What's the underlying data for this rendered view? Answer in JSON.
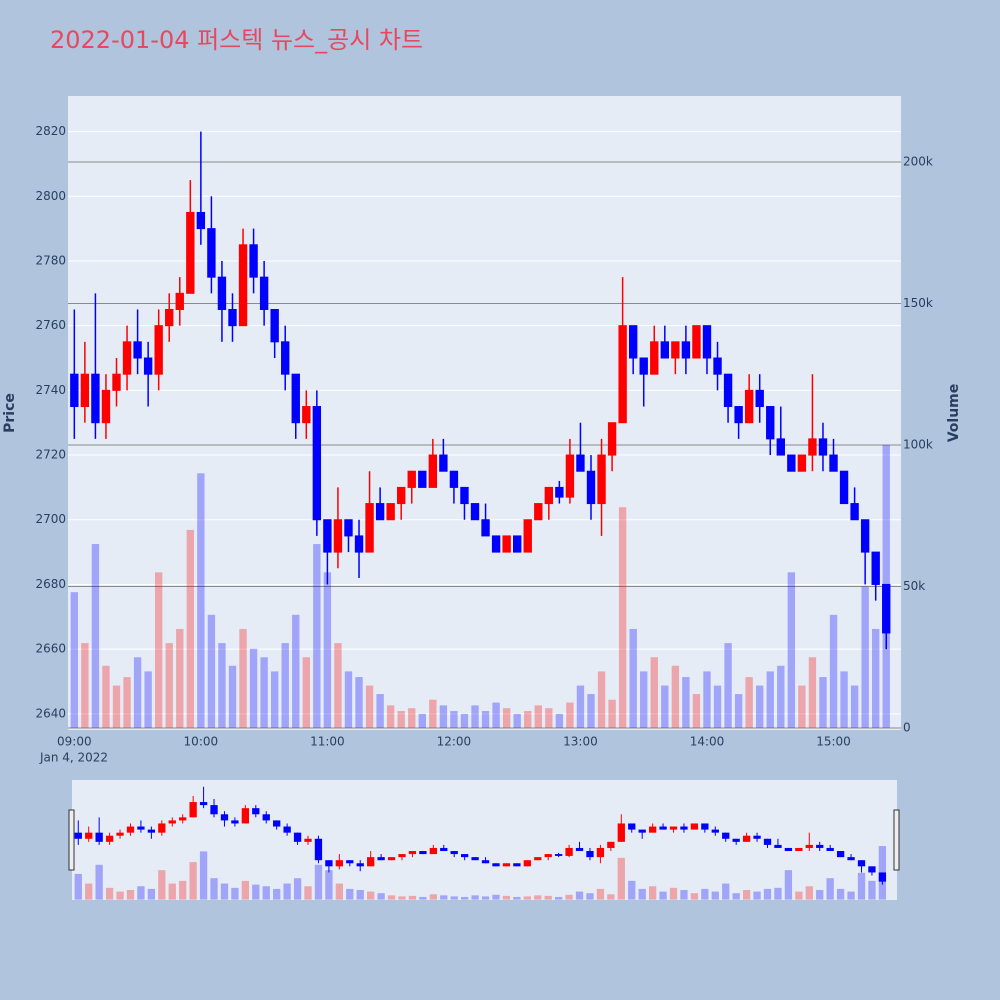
{
  "chart_data": {
    "type": "candlestick",
    "title": "2022-01-04 퍼스텍 뉴스_공시 차트",
    "y_label": "Price",
    "y2_label": "Volume",
    "date_label": "Jan 4, 2022",
    "increasing_color": "#ff0000",
    "decreasing_color": "#0000ff",
    "x": [
      "09:00",
      "09:05",
      "09:10",
      "09:15",
      "09:20",
      "09:25",
      "09:30",
      "09:35",
      "09:40",
      "09:45",
      "09:50",
      "09:55",
      "10:00",
      "10:05",
      "10:10",
      "10:15",
      "10:20",
      "10:25",
      "10:30",
      "10:35",
      "10:40",
      "10:45",
      "10:50",
      "10:55",
      "11:00",
      "11:05",
      "11:10",
      "11:15",
      "11:20",
      "11:25",
      "11:30",
      "11:35",
      "11:40",
      "11:45",
      "11:50",
      "11:55",
      "12:00",
      "12:05",
      "12:10",
      "12:15",
      "12:20",
      "12:25",
      "12:30",
      "12:35",
      "12:40",
      "12:45",
      "12:50",
      "12:55",
      "13:00",
      "13:05",
      "13:10",
      "13:15",
      "13:20",
      "13:25",
      "13:30",
      "13:35",
      "13:40",
      "13:45",
      "13:50",
      "13:55",
      "14:00",
      "14:05",
      "14:10",
      "14:15",
      "14:20",
      "14:25",
      "14:30",
      "14:35",
      "14:40",
      "14:45",
      "14:50",
      "14:55",
      "15:00",
      "15:05",
      "15:10",
      "15:15",
      "15:20",
      "15:25"
    ],
    "open": [
      2745,
      2735,
      2745,
      2730,
      2740,
      2745,
      2755,
      2750,
      2745,
      2760,
      2765,
      2770,
      2795,
      2790,
      2775,
      2765,
      2760,
      2785,
      2775,
      2765,
      2755,
      2745,
      2730,
      2735,
      2700,
      2690,
      2700,
      2695,
      2690,
      2705,
      2700,
      2705,
      2710,
      2715,
      2710,
      2720,
      2715,
      2710,
      2705,
      2700,
      2695,
      2690,
      2695,
      2690,
      2700,
      2705,
      2710,
      2707,
      2720,
      2715,
      2705,
      2720,
      2730,
      2760,
      2750,
      2745,
      2755,
      2750,
      2755,
      2750,
      2760,
      2750,
      2745,
      2735,
      2730,
      2740,
      2735,
      2725,
      2720,
      2715,
      2720,
      2725,
      2720,
      2715,
      2705,
      2700,
      2690,
      2680
    ],
    "high": [
      2765,
      2755,
      2770,
      2745,
      2750,
      2760,
      2765,
      2755,
      2765,
      2770,
      2775,
      2805,
      2820,
      2800,
      2780,
      2770,
      2790,
      2790,
      2780,
      2765,
      2760,
      2745,
      2740,
      2740,
      2700,
      2710,
      2700,
      2700,
      2715,
      2710,
      2705,
      2710,
      2715,
      2715,
      2725,
      2725,
      2715,
      2710,
      2705,
      2705,
      2695,
      2695,
      2695,
      2700,
      2705,
      2710,
      2712,
      2725,
      2730,
      2720,
      2725,
      2730,
      2775,
      2760,
      2750,
      2760,
      2760,
      2755,
      2760,
      2760,
      2760,
      2755,
      2745,
      2735,
      2745,
      2745,
      2735,
      2735,
      2720,
      2720,
      2745,
      2730,
      2725,
      2715,
      2710,
      2700,
      2690,
      2680
    ],
    "low": [
      2725,
      2730,
      2725,
      2725,
      2735,
      2740,
      2745,
      2735,
      2740,
      2755,
      2760,
      2770,
      2785,
      2770,
      2755,
      2755,
      2760,
      2770,
      2760,
      2750,
      2740,
      2725,
      2725,
      2695,
      2680,
      2685,
      2690,
      2682,
      2690,
      2700,
      2700,
      2700,
      2705,
      2710,
      2710,
      2715,
      2705,
      2700,
      2700,
      2695,
      2690,
      2690,
      2690,
      2690,
      2700,
      2700,
      2705,
      2705,
      2715,
      2700,
      2695,
      2715,
      2730,
      2745,
      2735,
      2745,
      2750,
      2745,
      2745,
      2750,
      2745,
      2740,
      2730,
      2725,
      2730,
      2730,
      2720,
      2720,
      2715,
      2715,
      2715,
      2715,
      2715,
      2705,
      2700,
      2680,
      2675,
      2660
    ],
    "close": [
      2735,
      2745,
      2730,
      2740,
      2745,
      2755,
      2750,
      2745,
      2760,
      2765,
      2770,
      2795,
      2790,
      2775,
      2765,
      2760,
      2785,
      2775,
      2765,
      2755,
      2745,
      2730,
      2735,
      2700,
      2690,
      2700,
      2695,
      2690,
      2705,
      2700,
      2705,
      2710,
      2715,
      2710,
      2720,
      2715,
      2710,
      2705,
      2700,
      2695,
      2690,
      2695,
      2690,
      2700,
      2705,
      2710,
      2707,
      2720,
      2715,
      2705,
      2720,
      2730,
      2760,
      2750,
      2745,
      2755,
      2750,
      2755,
      2750,
      2760,
      2750,
      2745,
      2735,
      2730,
      2740,
      2735,
      2725,
      2720,
      2715,
      2720,
      2725,
      2720,
      2715,
      2705,
      2700,
      2690,
      2680,
      2665
    ],
    "volume": [
      48000,
      30000,
      65000,
      22000,
      15000,
      18000,
      25000,
      20000,
      55000,
      30000,
      35000,
      70000,
      90000,
      40000,
      30000,
      22000,
      35000,
      28000,
      25000,
      20000,
      30000,
      40000,
      25000,
      65000,
      55000,
      30000,
      20000,
      18000,
      15000,
      12000,
      8000,
      6000,
      7000,
      5000,
      10000,
      8000,
      6000,
      5000,
      8000,
      6000,
      9000,
      7000,
      5000,
      6000,
      8000,
      7000,
      5000,
      9000,
      15000,
      12000,
      20000,
      10000,
      78000,
      35000,
      20000,
      25000,
      15000,
      22000,
      18000,
      12000,
      20000,
      15000,
      30000,
      12000,
      18000,
      15000,
      20000,
      22000,
      55000,
      15000,
      25000,
      18000,
      40000,
      20000,
      15000,
      50000,
      35000,
      100000
    ],
    "xlim": [
      "08:57",
      "15:32"
    ],
    "xticks": [
      "09:00",
      "10:00",
      "11:00",
      "12:00",
      "13:00",
      "14:00",
      "15:00"
    ],
    "ylim": [
      2635,
      2831
    ],
    "yticks": [
      2640,
      2660,
      2680,
      2700,
      2720,
      2740,
      2760,
      2780,
      2800,
      2820
    ],
    "y2lim": [
      -700,
      223300
    ],
    "y2ticks": [
      0,
      {
        "value": 50000,
        "label": "50k"
      },
      {
        "value": 100000,
        "label": "100k"
      },
      {
        "value": 150000,
        "label": "150k"
      },
      {
        "value": 200000,
        "label": "200k"
      }
    ],
    "grid": true,
    "rangeslider": true
  }
}
